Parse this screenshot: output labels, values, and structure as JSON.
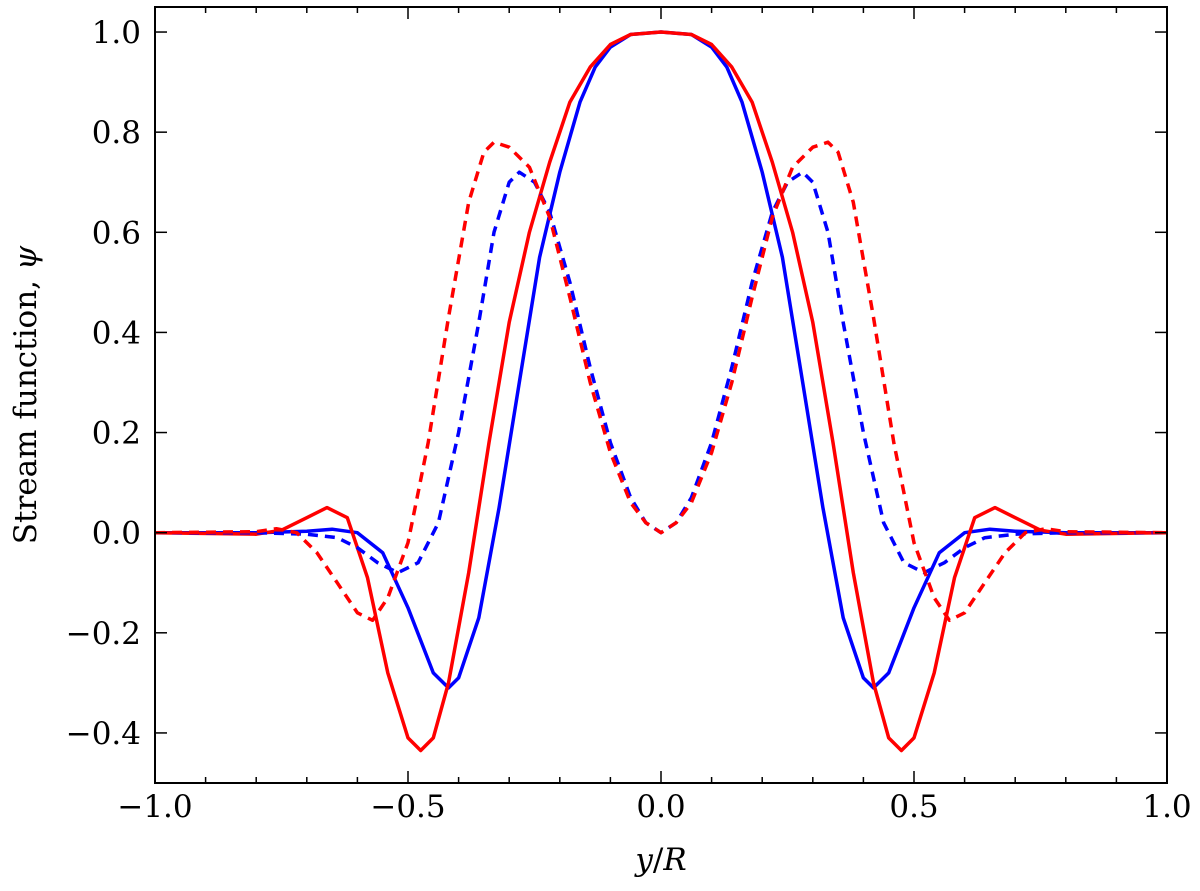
{
  "chart_data": {
    "type": "line",
    "title": "",
    "xlabel_parts": [
      "y",
      "/",
      "R"
    ],
    "ylabel_parts": [
      "Stream function, ",
      "ψ"
    ],
    "xlim": [
      -1.0,
      1.0
    ],
    "ylim": [
      -0.5,
      1.05
    ],
    "x_ticks": [
      -1.0,
      -0.5,
      0.0,
      0.5,
      1.0
    ],
    "x_tick_labels": [
      "−1.0",
      "−0.5",
      "0.0",
      "0.5",
      "1.0"
    ],
    "y_ticks": [
      -0.4,
      -0.2,
      0.0,
      0.2,
      0.4,
      0.6,
      0.8,
      1.0
    ],
    "y_tick_labels": [
      "−0.4",
      "−0.2",
      "0.0",
      "0.2",
      "0.4",
      "0.6",
      "0.8",
      "1.0"
    ],
    "x_minor_ticks": [
      -0.9,
      -0.8,
      -0.7,
      -0.6,
      -0.4,
      -0.3,
      -0.2,
      -0.1,
      0.1,
      0.2,
      0.3,
      0.4,
      0.6,
      0.7,
      0.8,
      0.9
    ],
    "grid": false,
    "legend": "none",
    "series": [
      {
        "color": "#0000ff",
        "style": "solid",
        "x": [
          0.0,
          0.06,
          0.1,
          0.13,
          0.16,
          0.2,
          0.24,
          0.28,
          0.32,
          0.36,
          0.4,
          0.42,
          0.45,
          0.5,
          0.55,
          0.6,
          0.65,
          0.7,
          0.8,
          1.0
        ],
        "y": [
          1.0,
          0.995,
          0.97,
          0.93,
          0.86,
          0.72,
          0.55,
          0.3,
          0.05,
          -0.17,
          -0.29,
          -0.31,
          -0.28,
          -0.15,
          -0.04,
          0.0,
          0.007,
          0.003,
          0.0,
          0.0
        ]
      },
      {
        "color": "#ff0000",
        "style": "solid",
        "x": [
          0.0,
          0.06,
          0.1,
          0.14,
          0.18,
          0.22,
          0.26,
          0.3,
          0.34,
          0.38,
          0.42,
          0.45,
          0.475,
          0.5,
          0.54,
          0.58,
          0.62,
          0.66,
          0.7,
          0.75,
          0.8,
          1.0
        ],
        "y": [
          1.0,
          0.995,
          0.975,
          0.93,
          0.86,
          0.74,
          0.6,
          0.42,
          0.18,
          -0.08,
          -0.3,
          -0.41,
          -0.435,
          -0.41,
          -0.28,
          -0.09,
          0.03,
          0.05,
          0.03,
          0.005,
          -0.003,
          0.0
        ]
      },
      {
        "color": "#0000ff",
        "style": "dashed",
        "x": [
          0.0,
          0.03,
          0.06,
          0.1,
          0.14,
          0.18,
          0.22,
          0.25,
          0.28,
          0.3,
          0.33,
          0.36,
          0.4,
          0.44,
          0.48,
          0.52,
          0.56,
          0.6,
          0.64,
          0.7,
          0.8,
          1.0
        ],
        "y": [
          0.0,
          0.02,
          0.07,
          0.18,
          0.33,
          0.5,
          0.64,
          0.7,
          0.72,
          0.7,
          0.6,
          0.42,
          0.2,
          0.02,
          -0.06,
          -0.08,
          -0.06,
          -0.03,
          -0.01,
          -0.003,
          0.0,
          0.0
        ]
      },
      {
        "color": "#ff0000",
        "style": "dashed",
        "x": [
          0.0,
          0.03,
          0.06,
          0.1,
          0.14,
          0.18,
          0.22,
          0.26,
          0.3,
          0.33,
          0.35,
          0.38,
          0.42,
          0.46,
          0.5,
          0.54,
          0.57,
          0.6,
          0.64,
          0.68,
          0.72,
          0.76,
          0.8,
          1.0
        ],
        "y": [
          0.0,
          0.02,
          0.06,
          0.16,
          0.3,
          0.47,
          0.63,
          0.73,
          0.77,
          0.78,
          0.76,
          0.66,
          0.43,
          0.18,
          -0.02,
          -0.13,
          -0.175,
          -0.16,
          -0.1,
          -0.04,
          0.0,
          0.008,
          0.002,
          0.0
        ]
      }
    ]
  }
}
